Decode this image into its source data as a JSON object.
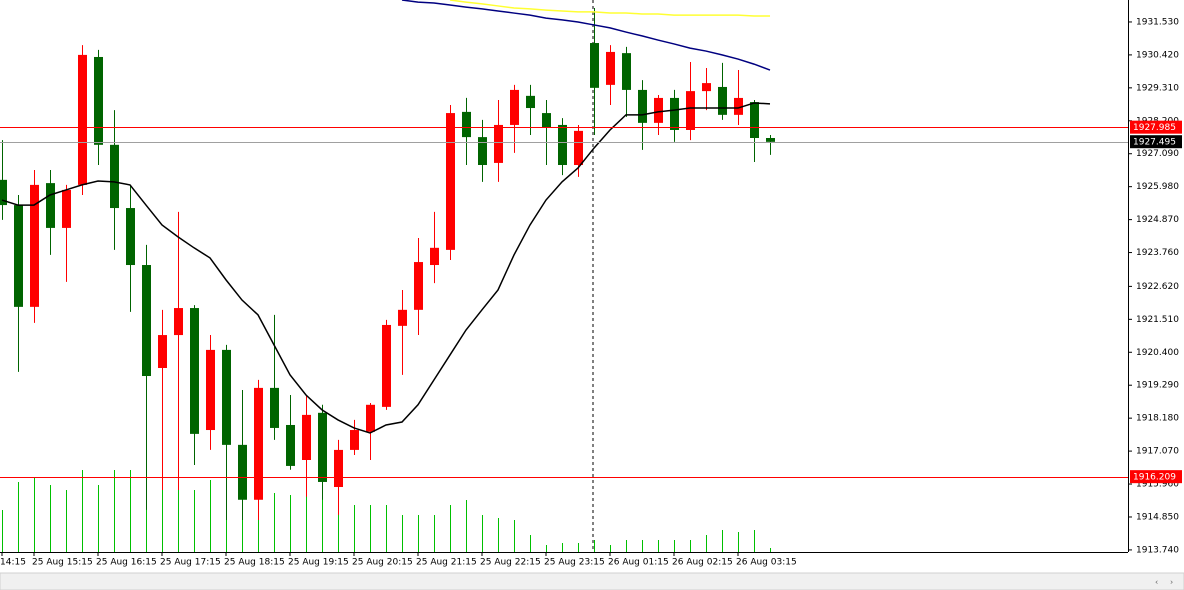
{
  "chart_data": {
    "type": "candlestick",
    "categories": [
      "14:15",
      null,
      "25 Aug 15:15",
      null,
      null,
      null,
      "25 Aug 16:15",
      null,
      null,
      null,
      "25 Aug 17:15",
      null,
      null,
      null,
      "25 Aug 18:15",
      null,
      null,
      null,
      "25 Aug 19:15",
      null,
      null,
      null,
      "25 Aug 20:15",
      null,
      null,
      null,
      "25 Aug 21:15",
      null,
      null,
      null,
      "25 Aug 22:15",
      null,
      null,
      null,
      "25 Aug 23:15",
      null,
      null,
      null,
      "26 Aug 01:15",
      null,
      null,
      null,
      "26 Aug 02:15",
      null,
      null,
      null,
      "26 Aug 03:15",
      null,
      null
    ],
    "open": [
      1926.21,
      1925.36,
      1921.93,
      1926.1,
      1924.59,
      1926.04,
      1930.35,
      1927.39,
      1925.26,
      1923.34,
      1919.87,
      1920.98,
      1921.89,
      1917.78,
      1920.48,
      1917.28,
      1915.43,
      1919.2,
      1917.95,
      1916.77,
      1918.36,
      1915.86,
      1917.11,
      1917.72,
      1918.56,
      1921.29,
      1921.83,
      1923.34,
      1923.85,
      1928.5,
      1927.65,
      1926.78,
      1928.06,
      1929.04,
      1928.46,
      1928.06,
      1926.71,
      1930.82,
      1929.41,
      1930.48,
      1929.24,
      1928.13,
      1928.97,
      1927.89,
      1929.2,
      1929.34,
      1928.4,
      1928.83,
      1927.62
    ],
    "high": [
      1927.55,
      1925.7,
      1926.54,
      1926.54,
      1926.04,
      1930.75,
      1930.59,
      1928.56,
      1926.04,
      1924.02,
      1921.83,
      1925.13,
      1921.99,
      1920.98,
      1920.65,
      1919.13,
      1919.47,
      1921.66,
      1918.96,
      1918.96,
      1918.63,
      1917.45,
      1918.12,
      1918.69,
      1921.49,
      1922.5,
      1924.25,
      1925.13,
      1928.73,
      1928.97,
      1928.23,
      1928.9,
      1929.41,
      1929.41,
      1928.9,
      1928.29,
      1928.06,
      1932.0,
      1930.75,
      1930.69,
      1929.57,
      1929.07,
      1929.24,
      1930.18,
      1929.98,
      1930.15,
      1929.91,
      1928.9,
      1927.72
    ],
    "low": [
      1924.86,
      1919.74,
      1921.39,
      1923.68,
      1922.77,
      1925.7,
      1926.71,
      1923.85,
      1921.76,
      1915.09,
      1915.76,
      1915.76,
      1916.6,
      1917.11,
      1914.75,
      1914.75,
      1914.75,
      1917.45,
      1916.44,
      1915.53,
      1915.43,
      1914.92,
      1916.94,
      1916.77,
      1918.46,
      1919.64,
      1920.98,
      1922.73,
      1923.51,
      1926.71,
      1926.14,
      1926.14,
      1927.12,
      1927.72,
      1926.71,
      1926.37,
      1926.31,
      1927.72,
      1928.73,
      1928.33,
      1927.22,
      1927.72,
      1927.49,
      1927.55,
      1928.56,
      1928.23,
      1928.06,
      1926.81,
      1927.05
    ],
    "close": [
      1925.36,
      1921.93,
      1926.04,
      1924.59,
      1925.87,
      1930.42,
      1927.39,
      1925.26,
      1923.34,
      1919.6,
      1920.98,
      1921.89,
      1917.65,
      1920.48,
      1917.28,
      1915.43,
      1919.2,
      1917.85,
      1916.57,
      1918.29,
      1916.03,
      1917.11,
      1917.78,
      1918.63,
      1921.32,
      1921.83,
      1923.44,
      1923.92,
      1928.46,
      1927.65,
      1926.71,
      1928.06,
      1929.24,
      1928.63,
      1927.99,
      1926.71,
      1927.86,
      1929.31,
      1930.52,
      1929.24,
      1928.13,
      1928.97,
      1927.89,
      1929.2,
      1929.47,
      1928.4,
      1928.97,
      1927.62,
      1927.49
    ],
    "up_color": "#ff0000",
    "down_color": "#006400",
    "series": [
      {
        "color": "#000000",
        "values": [
          1925.53,
          1925.36,
          1925.36,
          1925.7,
          1925.87,
          1926.04,
          1926.17,
          1926.14,
          1926.04,
          1925.36,
          1924.69,
          1924.29,
          1923.92,
          1923.58,
          1922.84,
          1922.16,
          1921.66,
          1920.65,
          1919.64,
          1918.96,
          1918.46,
          1918.12,
          1917.85,
          1917.68,
          1917.95,
          1918.05,
          1918.63,
          1919.47,
          1920.31,
          1921.15,
          1921.83,
          1922.5,
          1923.68,
          1924.69,
          1925.53,
          1926.14,
          1926.61,
          1927.28,
          1927.89,
          1928.4,
          1928.4,
          1928.5,
          1928.56,
          1928.63,
          1928.63,
          1928.63,
          1928.63,
          1928.8,
          1928.77
        ]
      },
      {
        "color": "#000080",
        "values": [
          null,
          null,
          null,
          null,
          null,
          null,
          null,
          null,
          null,
          null,
          null,
          null,
          null,
          null,
          null,
          null,
          null,
          null,
          null,
          null,
          null,
          null,
          null,
          null,
          null,
          1932.27,
          1932.2,
          1932.17,
          1932.1,
          1932.03,
          1931.97,
          1931.9,
          1931.83,
          1931.76,
          1931.66,
          1931.6,
          1931.53,
          1931.43,
          1931.33,
          1931.19,
          1931.06,
          1930.92,
          1930.79,
          1930.65,
          1930.55,
          1930.42,
          1930.28,
          1930.11,
          1929.91
        ]
      },
      {
        "color": "#ffff33",
        "values": [
          null,
          null,
          null,
          null,
          null,
          null,
          null,
          null,
          null,
          null,
          null,
          null,
          null,
          null,
          null,
          null,
          null,
          null,
          null,
          null,
          null,
          null,
          null,
          null,
          null,
          null,
          null,
          null,
          1932.27,
          1932.2,
          1932.14,
          1932.07,
          1932.0,
          1931.97,
          1931.93,
          1931.9,
          1931.87,
          1931.87,
          1931.83,
          1931.83,
          1931.8,
          1931.8,
          1931.76,
          1931.76,
          1931.76,
          1931.76,
          1931.76,
          1931.73,
          1931.73
        ]
      }
    ],
    "volume": {
      "color": "#00c000",
      "vlim": [
        0,
        100
      ],
      "values": [
        42,
        70,
        74,
        67,
        62,
        82,
        67,
        82,
        82,
        67,
        82,
        62,
        62,
        72,
        62,
        62,
        62,
        59,
        57,
        59,
        54,
        50,
        47,
        47,
        47,
        37,
        37,
        37,
        47,
        52,
        37,
        34,
        32,
        17,
        7,
        9,
        9,
        12,
        7,
        12,
        12,
        12,
        12,
        12,
        17,
        22,
        20,
        22,
        4
      ]
    },
    "price_lines": [
      {
        "value": 1927.985,
        "color": "#ff0000",
        "line_color": "#ff0000"
      },
      {
        "value": 1927.495,
        "color": "#000000",
        "line_color": "#a0a0a0"
      },
      {
        "value": 1916.209,
        "color": "#ff0000",
        "line_color": "#ff0000"
      }
    ],
    "ylim": [
      1913.67,
      1932.27
    ],
    "yticks": [
      {
        "value": 1931.53,
        "label": "1931.530"
      },
      {
        "value": 1930.42,
        "label": "1930.420"
      },
      {
        "value": 1929.31,
        "label": "1929.310"
      },
      {
        "value": 1928.2,
        "label": "1928.200"
      },
      {
        "value": 1927.09,
        "label": "1927.090"
      },
      {
        "value": 1925.98,
        "label": "1925.980"
      },
      {
        "value": 1924.87,
        "label": "1924.870"
      },
      {
        "value": 1923.76,
        "label": "1923.760"
      },
      {
        "value": 1922.62,
        "label": "1922.620"
      },
      {
        "value": 1921.51,
        "label": "1921.510"
      },
      {
        "value": 1920.4,
        "label": "1920.400"
      },
      {
        "value": 1919.29,
        "label": "1919.290"
      },
      {
        "value": 1918.18,
        "label": "1918.180"
      },
      {
        "value": 1917.07,
        "label": "1917.070"
      },
      {
        "value": 1915.96,
        "label": "1915.960"
      },
      {
        "value": 1914.85,
        "label": "1914.850"
      },
      {
        "value": 1913.74,
        "label": "1913.740"
      }
    ]
  }
}
